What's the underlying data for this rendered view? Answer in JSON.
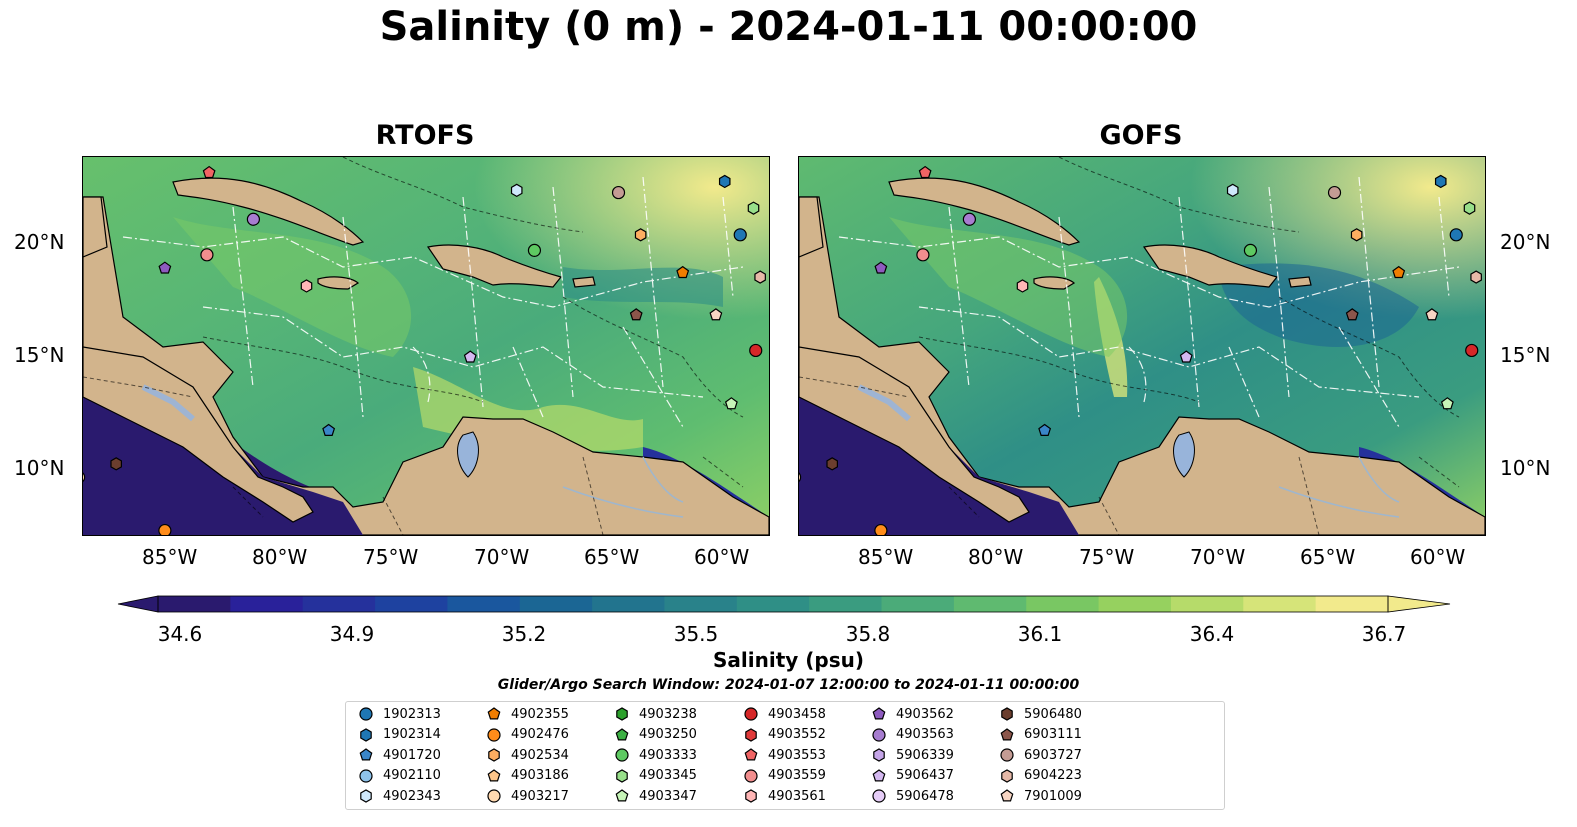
{
  "title": "Salinity (0 m) - 2024-01-11 00:00:00",
  "panels": [
    {
      "title": "RTOFS"
    },
    {
      "title": "GOFS"
    }
  ],
  "lat_labels": [
    "20°N",
    "15°N",
    "10°N"
  ],
  "lon_labels": [
    "85°W",
    "80°W",
    "75°W",
    "70°W",
    "65°W",
    "60°W"
  ],
  "colors": {
    "land": "#d2b48c",
    "lake": "#98b4da",
    "river": "#9fb6cd",
    "ocean_mid": "#5fba74"
  },
  "colorbar": {
    "label": "Salinity (psu)",
    "min": 34.6,
    "max": 36.7,
    "ticks": [
      "34.6",
      "34.9",
      "35.2",
      "35.5",
      "35.8",
      "36.1",
      "36.4",
      "36.7"
    ],
    "colors": [
      "#2a1a6e",
      "#29219a",
      "#25319c",
      "#1e42a0",
      "#1a579e",
      "#1b6694",
      "#22748e",
      "#29828a",
      "#2f8f86",
      "#3a9c80",
      "#4bab79",
      "#5fba70",
      "#79c763",
      "#96d15f",
      "#b6db6a",
      "#d6e479",
      "#f2ea8c"
    ]
  },
  "search_window": "Glider/Argo Search Window: 2024-01-07 12:00:00 to 2024-01-11 00:00:00",
  "legend": [
    {
      "id": "1902313",
      "shape": "circle",
      "color": "#1f77b4"
    },
    {
      "id": "1902314",
      "shape": "hexagon",
      "color": "#1f77b4"
    },
    {
      "id": "4901720",
      "shape": "pentagon",
      "color": "#3a86c8"
    },
    {
      "id": "4902110",
      "shape": "circle",
      "color": "#8ec2ea"
    },
    {
      "id": "4902343",
      "shape": "hexagon",
      "color": "#cfe8fb"
    },
    {
      "id": "4902355",
      "shape": "pentagon",
      "color": "#f07d00"
    },
    {
      "id": "4902476",
      "shape": "circle",
      "color": "#ff8c1a"
    },
    {
      "id": "4902534",
      "shape": "hexagon",
      "color": "#fdae61"
    },
    {
      "id": "4903186",
      "shape": "pentagon",
      "color": "#fec68a"
    },
    {
      "id": "4903217",
      "shape": "circle",
      "color": "#ffd9b0"
    },
    {
      "id": "4903238",
      "shape": "hexagon",
      "color": "#2ca02c"
    },
    {
      "id": "4903250",
      "shape": "pentagon",
      "color": "#3cb043"
    },
    {
      "id": "4903333",
      "shape": "circle",
      "color": "#5ec962"
    },
    {
      "id": "4903345",
      "shape": "hexagon",
      "color": "#98df8a"
    },
    {
      "id": "4903347",
      "shape": "pentagon",
      "color": "#c7f5b8"
    },
    {
      "id": "4903458",
      "shape": "circle",
      "color": "#d62728"
    },
    {
      "id": "4903552",
      "shape": "hexagon",
      "color": "#e03a3a"
    },
    {
      "id": "4903553",
      "shape": "pentagon",
      "color": "#f06464"
    },
    {
      "id": "4903559",
      "shape": "circle",
      "color": "#f28e8e"
    },
    {
      "id": "4903561",
      "shape": "hexagon",
      "color": "#ffb6b6"
    },
    {
      "id": "4903562",
      "shape": "pentagon",
      "color": "#8e5bbf"
    },
    {
      "id": "4903563",
      "shape": "circle",
      "color": "#a77dd0"
    },
    {
      "id": "5906339",
      "shape": "hexagon",
      "color": "#c5a5e8"
    },
    {
      "id": "5906437",
      "shape": "pentagon",
      "color": "#d4b8f0"
    },
    {
      "id": "5906478",
      "shape": "circle",
      "color": "#e6cdf7"
    },
    {
      "id": "5906480",
      "shape": "hexagon",
      "color": "#6b3e2e"
    },
    {
      "id": "6903111",
      "shape": "pentagon",
      "color": "#8c564b"
    },
    {
      "id": "6903727",
      "shape": "circle",
      "color": "#c49c94"
    },
    {
      "id": "6904223",
      "shape": "hexagon",
      "color": "#e7b9a8"
    },
    {
      "id": "7901009",
      "shape": "pentagon",
      "color": "#f7d5c3"
    }
  ],
  "markers": [
    {
      "id": "4903553",
      "lon": -83.3,
      "lat": 23.3
    },
    {
      "id": "4903563",
      "lon": -81.3,
      "lat": 21.2
    },
    {
      "id": "4903559",
      "lon": -83.4,
      "lat": 19.6
    },
    {
      "id": "4903562",
      "lon": -85.3,
      "lat": 19.0
    },
    {
      "id": "4903561",
      "lon": -78.9,
      "lat": 18.2
    },
    {
      "id": "4903217",
      "lon": -89.2,
      "lat": 9.6
    },
    {
      "id": "5906478",
      "lon": -89.4,
      "lat": 9.0
    },
    {
      "id": "5906480",
      "lon": -87.5,
      "lat": 10.2
    },
    {
      "id": "4902476",
      "lon": -85.3,
      "lat": 7.2
    },
    {
      "id": "4903186",
      "lon": -89.3,
      "lat": 9.7
    },
    {
      "id": "4901720",
      "lon": -77.9,
      "lat": 11.7
    },
    {
      "id": "5906437",
      "lon": -71.5,
      "lat": 15.0
    },
    {
      "id": "4902343",
      "lon": -69.4,
      "lat": 22.5
    },
    {
      "id": "4903333",
      "lon": -68.6,
      "lat": 19.8
    },
    {
      "id": "6903727",
      "lon": -64.8,
      "lat": 22.4
    },
    {
      "id": "4902534",
      "lon": -63.8,
      "lat": 20.5
    },
    {
      "id": "1902314",
      "lon": -60.0,
      "lat": 22.9
    },
    {
      "id": "4903345",
      "lon": -58.7,
      "lat": 21.7
    },
    {
      "id": "1902313",
      "lon": -59.3,
      "lat": 20.5
    },
    {
      "id": "4902355",
      "lon": -61.9,
      "lat": 18.8
    },
    {
      "id": "6904223",
      "lon": -58.4,
      "lat": 18.6
    },
    {
      "id": "6903111",
      "lon": -64.0,
      "lat": 16.9
    },
    {
      "id": "7901009",
      "lon": -60.4,
      "lat": 16.9
    },
    {
      "id": "4903458",
      "lon": -58.6,
      "lat": 15.3
    },
    {
      "id": "4903347",
      "lon": -59.7,
      "lat": 12.9
    }
  ]
}
